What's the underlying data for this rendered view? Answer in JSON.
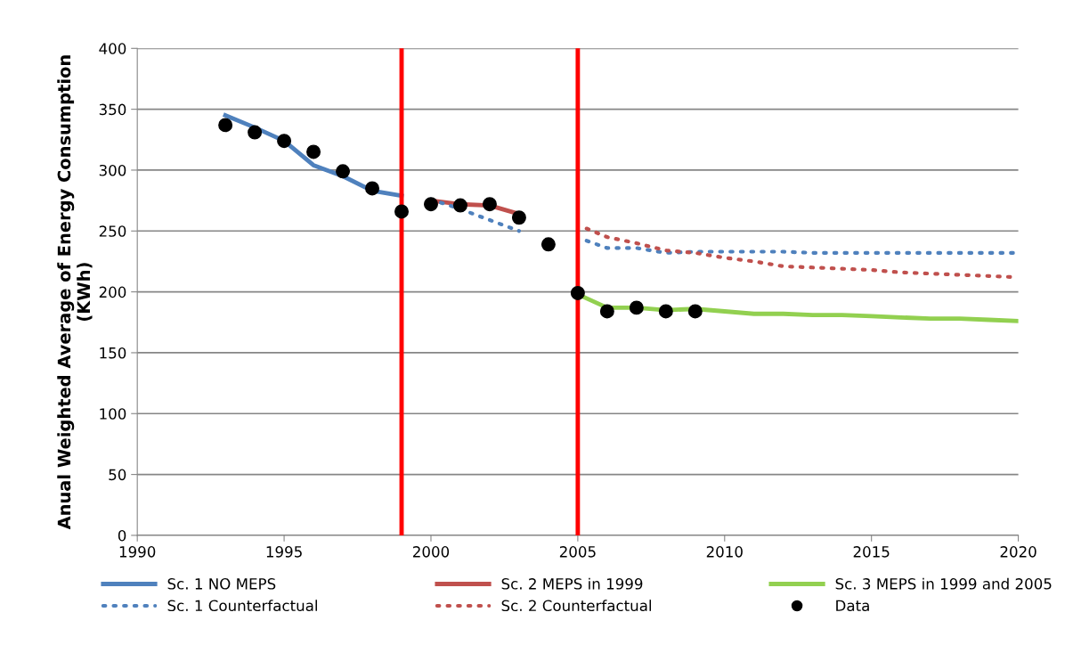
{
  "chart_data": {
    "type": "line",
    "ylabel": "Anual Weighted Average of Energy Consumption\n(KWh)",
    "xlim": [
      1990,
      2020
    ],
    "xticks": [
      1990,
      1995,
      2000,
      2005,
      2010,
      2015,
      2020
    ],
    "ylim": [
      0,
      400
    ],
    "yticks": [
      0,
      50,
      100,
      150,
      200,
      250,
      300,
      350,
      400
    ],
    "grid": "y",
    "legend": "bottom",
    "series": [
      {
        "name": "Sc. 1 NO MEPS",
        "color": "#4f81bd",
        "line_style": "solid",
        "x": [
          1993,
          1994,
          1995,
          1996,
          1997,
          1998,
          1999
        ],
        "values": [
          345,
          335,
          324,
          304,
          295,
          283,
          279
        ]
      },
      {
        "name": "Sc. 2 MEPS in 1999",
        "color": "#c0504d",
        "line_style": "solid",
        "x": [
          2000,
          2001,
          2002,
          2003
        ],
        "values": [
          275,
          272,
          271,
          264
        ]
      },
      {
        "name": "Sc. 3 MEPS in 1999 and 2005",
        "color": "#92d050",
        "line_style": "solid",
        "x": [
          2005,
          2006,
          2007,
          2008,
          2009,
          2010,
          2011,
          2012,
          2013,
          2014,
          2015,
          2016,
          2017,
          2018,
          2019,
          2020
        ],
        "values": [
          198,
          187,
          187,
          185,
          186,
          184,
          182,
          182,
          181,
          181,
          180,
          179,
          178,
          178,
          177,
          176
        ]
      },
      {
        "name": "Sc. 1 Counterfactual",
        "color": "#4f81bd",
        "line_style": "dotted",
        "x": [
          2000,
          2001,
          2002,
          2003,
          2004,
          2005.3,
          2006,
          2007,
          2008,
          2009,
          2010,
          2011,
          2012,
          2013,
          2014,
          2015,
          2016,
          2017,
          2018,
          2019,
          2020
        ],
        "values": [
          276,
          268,
          259,
          250,
          null,
          242,
          236,
          236,
          232,
          233,
          233,
          233,
          233,
          232,
          232,
          232,
          232,
          232,
          232,
          232,
          232
        ]
      },
      {
        "name": "Sc. 2 Counterfactual",
        "color": "#c0504d",
        "line_style": "dotted",
        "x": [
          2005.3,
          2006,
          2007,
          2008,
          2009,
          2010,
          2011,
          2012,
          2013,
          2014,
          2015,
          2016,
          2017,
          2018,
          2019,
          2020
        ],
        "values": [
          252,
          245,
          240,
          234,
          232,
          228,
          225,
          221,
          220,
          219,
          218,
          216,
          215,
          214,
          213,
          212
        ]
      },
      {
        "name": "Data",
        "type": "scatter",
        "color": "#000000",
        "marker": "circle",
        "x": [
          1993,
          1994,
          1995,
          1996,
          1997,
          1998,
          1999,
          2000,
          2001,
          2002,
          2003,
          2004,
          2005,
          2006,
          2007,
          2008,
          2009
        ],
        "values": [
          337,
          331,
          324,
          315,
          299,
          285,
          266,
          272,
          271,
          272,
          261,
          239,
          199,
          184,
          187,
          184,
          184
        ]
      }
    ],
    "ref_lines": [
      {
        "axis": "x",
        "value": 1999,
        "color": "#ff0000",
        "line_style": "solid"
      },
      {
        "axis": "x",
        "value": 2005,
        "color": "#ff0000",
        "line_style": "solid"
      }
    ]
  }
}
